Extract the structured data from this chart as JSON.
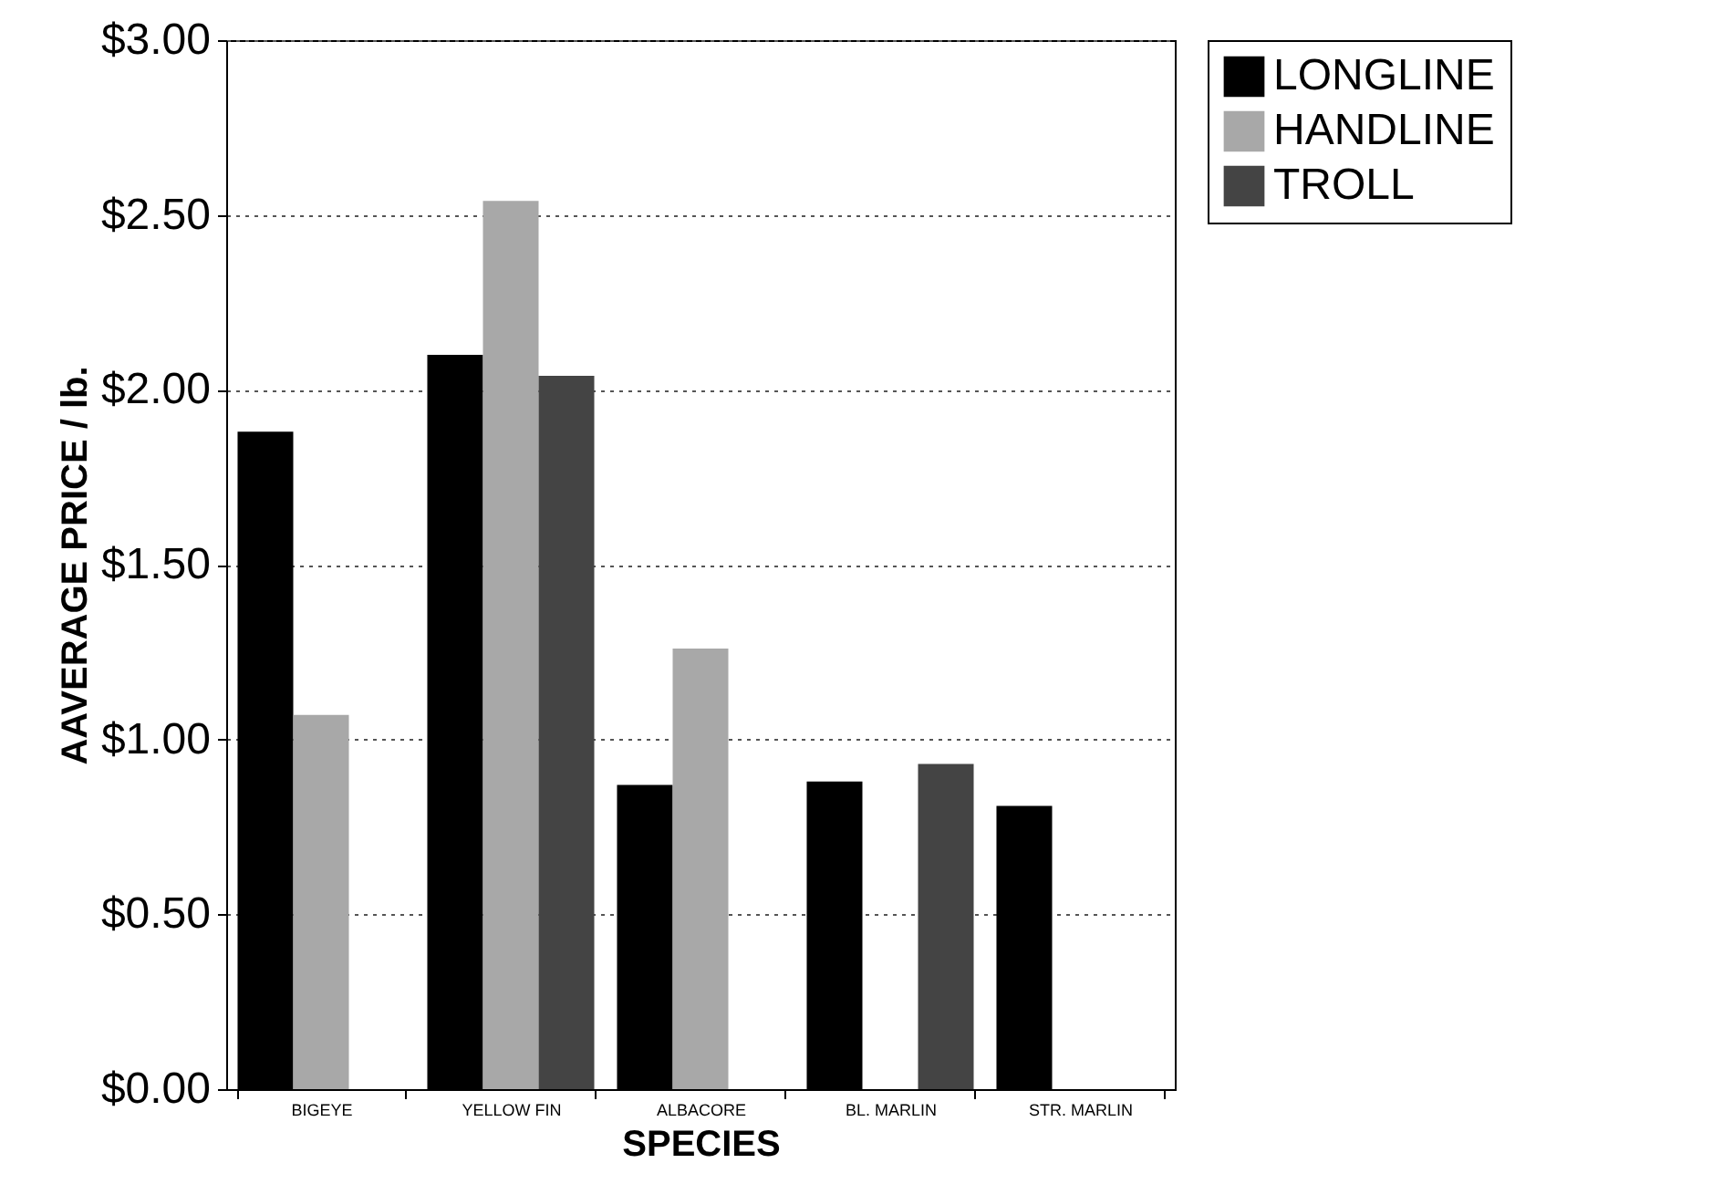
{
  "chart_data": {
    "type": "bar",
    "xlabel": "SPECIES",
    "ylabel": "AAVERAGE PRICE / lb.",
    "categories": [
      "BIGEYE",
      "YELLOW FIN",
      "ALBACORE",
      "BL. MARLIN",
      "STR. MARLIN"
    ],
    "series": [
      {
        "name": "LONGLINE",
        "color": "#000000",
        "values": [
          1.88,
          2.1,
          0.87,
          0.88,
          0.81
        ]
      },
      {
        "name": "HANDLINE",
        "color": "#a8a8a8",
        "values": [
          1.07,
          2.54,
          1.26,
          null,
          null
        ]
      },
      {
        "name": "TROLL",
        "color": "#444444",
        "values": [
          null,
          2.04,
          null,
          0.93,
          null
        ]
      }
    ],
    "ylim": [
      0,
      3
    ],
    "yticks": [
      {
        "value": 0,
        "label": "$0.00"
      },
      {
        "value": 0.5,
        "label": "$0.50"
      },
      {
        "value": 1,
        "label": "$1.00"
      },
      {
        "value": 1.5,
        "label": "$1.50"
      },
      {
        "value": 2,
        "label": "$2.00"
      },
      {
        "value": 2.5,
        "label": "$2.50"
      },
      {
        "value": 3,
        "label": "$3.00"
      }
    ],
    "grid": "y",
    "legend": "right"
  }
}
